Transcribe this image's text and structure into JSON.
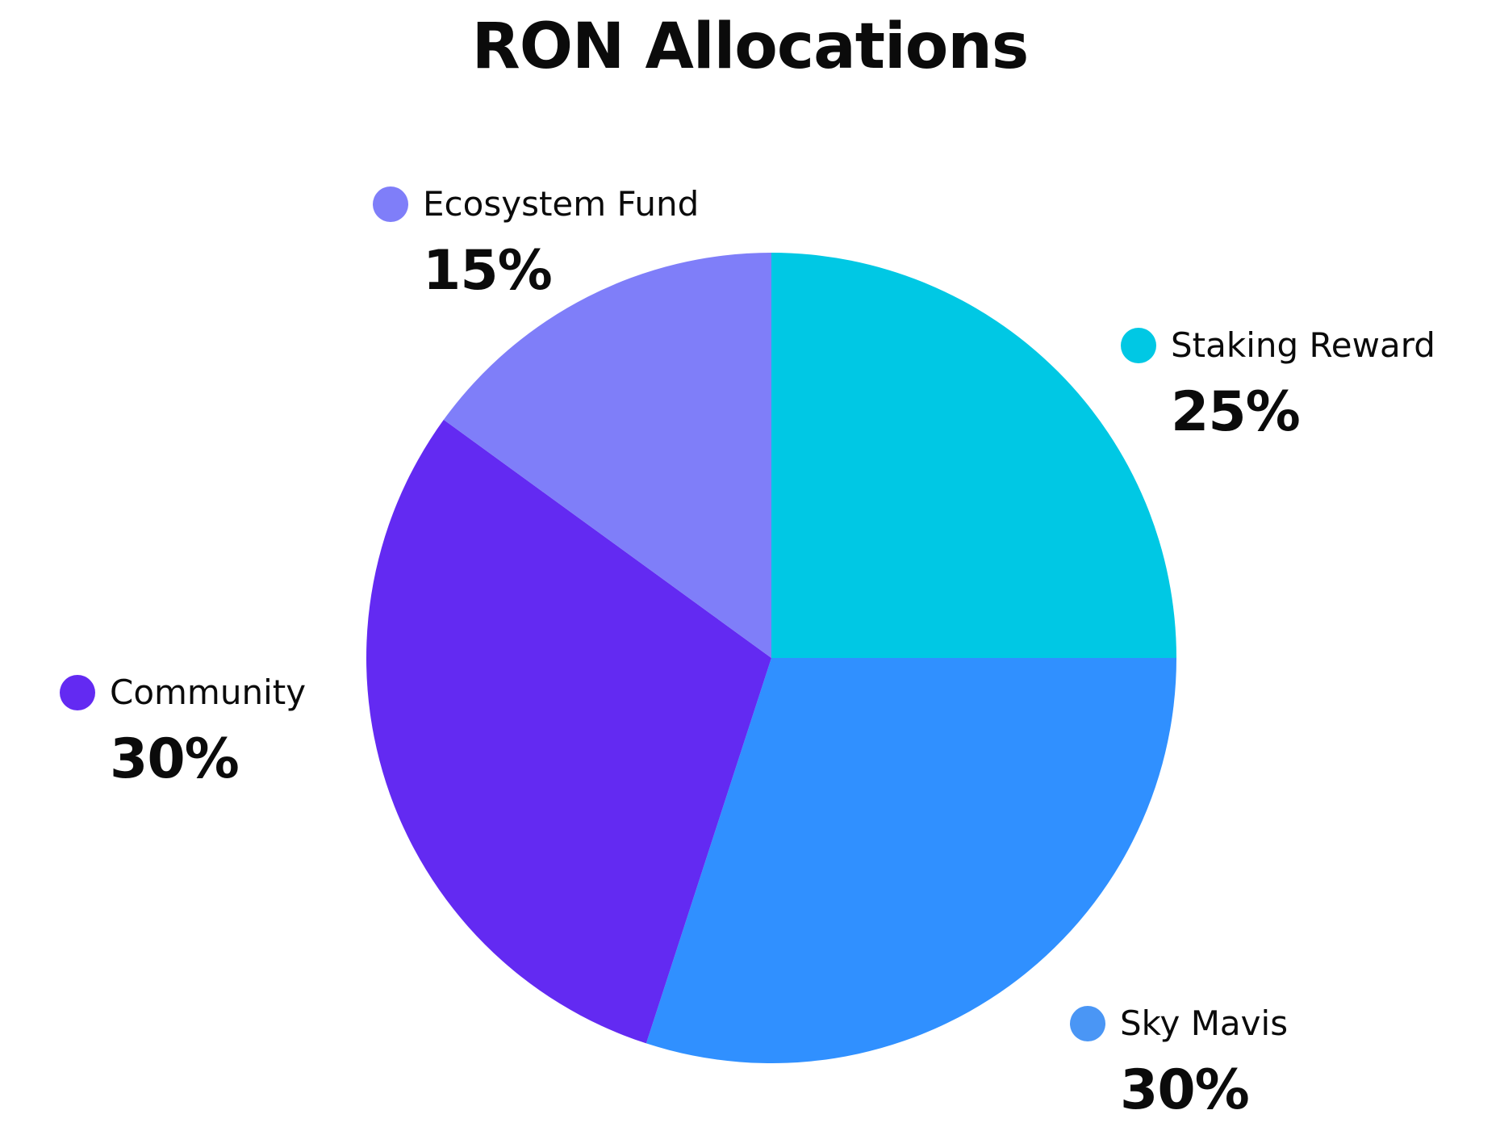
{
  "chart_data": {
    "type": "pie",
    "title": "RON Allocations",
    "start_angle": "12 o'clock",
    "direction": "clockwise",
    "slices": [
      {
        "label": "Staking Reward",
        "value": 25,
        "display": "25%",
        "color": "#00C8E4"
      },
      {
        "label": "Sky Mavis",
        "value": 30,
        "display": "30%",
        "color": "#3090FF"
      },
      {
        "label": "Community",
        "value": 30,
        "display": "30%",
        "color": "#632AF2"
      },
      {
        "label": "Ecosystem Fund",
        "value": 15,
        "display": "15%",
        "color": "#7F7EF9"
      }
    ],
    "legend_dot_colors": [
      "#00C8E4",
      "#4A96F5",
      "#632AF2",
      "#7F7EF9"
    ]
  }
}
